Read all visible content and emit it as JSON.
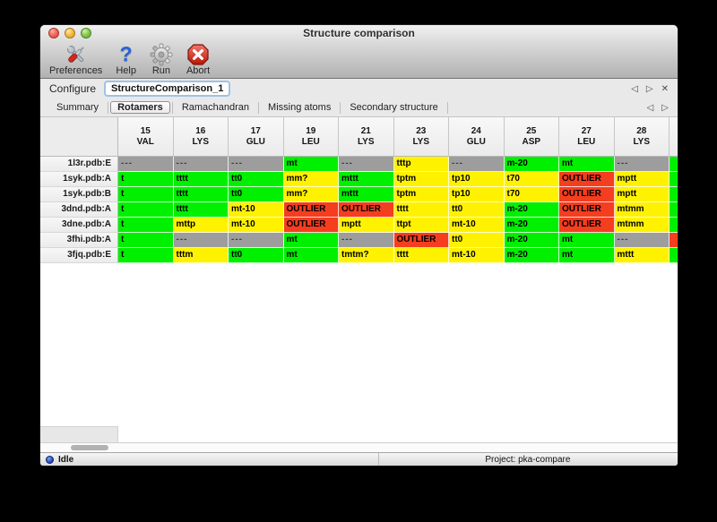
{
  "window": {
    "title": "Structure comparison"
  },
  "toolbar": {
    "buttons": [
      {
        "label": "Preferences",
        "icon": "tools-icon"
      },
      {
        "label": "Help",
        "icon": "question-mark-icon"
      },
      {
        "label": "Run",
        "icon": "gear-icon"
      },
      {
        "label": "Abort",
        "icon": "stop-x-icon"
      }
    ]
  },
  "icons": {
    "help_glyph": "?",
    "nav_prev": "◁",
    "nav_next": "▷",
    "close": "✕"
  },
  "configure": {
    "label": "Configure",
    "value": "StructureComparison_1"
  },
  "tabs": {
    "items": [
      "Summary",
      "Rotamers",
      "Ramachandran",
      "Missing atoms",
      "Secondary structure"
    ],
    "selected": "Rotamers"
  },
  "colors": {
    "ok": "#00f000",
    "warn": "#fff200",
    "outlier": "#f53d20",
    "missing": "#9d9d9d"
  },
  "table": {
    "columns": [
      {
        "num": "15",
        "res": "VAL"
      },
      {
        "num": "16",
        "res": "LYS"
      },
      {
        "num": "17",
        "res": "GLU"
      },
      {
        "num": "19",
        "res": "LEU"
      },
      {
        "num": "21",
        "res": "LYS"
      },
      {
        "num": "23",
        "res": "LYS"
      },
      {
        "num": "24",
        "res": "GLU"
      },
      {
        "num": "25",
        "res": "ASP"
      },
      {
        "num": "27",
        "res": "LEU"
      },
      {
        "num": "28",
        "res": "LYS"
      }
    ],
    "rows": [
      {
        "name": "1l3r.pdb:E",
        "cells": [
          [
            "---",
            "missing"
          ],
          [
            "---",
            "missing"
          ],
          [
            "---",
            "missing"
          ],
          [
            "mt",
            "ok"
          ],
          [
            "---",
            "missing"
          ],
          [
            "tttp",
            "warn"
          ],
          [
            "---",
            "missing"
          ],
          [
            "m-20",
            "ok"
          ],
          [
            "mt",
            "ok"
          ],
          [
            "---",
            "missing"
          ]
        ],
        "extra": "ok"
      },
      {
        "name": "1syk.pdb:A",
        "cells": [
          [
            "t",
            "ok"
          ],
          [
            "tttt",
            "ok"
          ],
          [
            "tt0",
            "ok"
          ],
          [
            "mm?",
            "warn"
          ],
          [
            "mttt",
            "ok"
          ],
          [
            "tptm",
            "warn"
          ],
          [
            "tp10",
            "warn"
          ],
          [
            "t70",
            "warn"
          ],
          [
            "OUTLIER",
            "outlier"
          ],
          [
            "mptt",
            "warn"
          ]
        ],
        "extra": "ok"
      },
      {
        "name": "1syk.pdb:B",
        "cells": [
          [
            "t",
            "ok"
          ],
          [
            "tttt",
            "ok"
          ],
          [
            "tt0",
            "ok"
          ],
          [
            "mm?",
            "warn"
          ],
          [
            "mttt",
            "ok"
          ],
          [
            "tptm",
            "warn"
          ],
          [
            "tp10",
            "warn"
          ],
          [
            "t70",
            "warn"
          ],
          [
            "OUTLIER",
            "outlier"
          ],
          [
            "mptt",
            "warn"
          ]
        ],
        "extra": "ok"
      },
      {
        "name": "3dnd.pdb:A",
        "cells": [
          [
            "t",
            "ok"
          ],
          [
            "tttt",
            "ok"
          ],
          [
            "mt-10",
            "warn"
          ],
          [
            "OUTLIER",
            "outlier"
          ],
          [
            "OUTLIER",
            "outlier"
          ],
          [
            "tttt",
            "warn"
          ],
          [
            "tt0",
            "warn"
          ],
          [
            "m-20",
            "ok"
          ],
          [
            "OUTLIER",
            "outlier"
          ],
          [
            "mtmm",
            "warn"
          ]
        ],
        "extra": "ok"
      },
      {
        "name": "3dne.pdb:A",
        "cells": [
          [
            "t",
            "ok"
          ],
          [
            "mttp",
            "warn"
          ],
          [
            "mt-10",
            "warn"
          ],
          [
            "OUTLIER",
            "outlier"
          ],
          [
            "mptt",
            "warn"
          ],
          [
            "ttpt",
            "warn"
          ],
          [
            "mt-10",
            "warn"
          ],
          [
            "m-20",
            "ok"
          ],
          [
            "OUTLIER",
            "outlier"
          ],
          [
            "mtmm",
            "warn"
          ]
        ],
        "extra": "ok"
      },
      {
        "name": "3fhi.pdb:A",
        "cells": [
          [
            "t",
            "ok"
          ],
          [
            "---",
            "missing"
          ],
          [
            "---",
            "missing"
          ],
          [
            "mt",
            "ok"
          ],
          [
            "---",
            "missing"
          ],
          [
            "OUTLIER",
            "outlier"
          ],
          [
            "tt0",
            "warn"
          ],
          [
            "m-20",
            "ok"
          ],
          [
            "mt",
            "ok"
          ],
          [
            "---",
            "missing"
          ]
        ],
        "extra": "outlier"
      },
      {
        "name": "3fjq.pdb:E",
        "cells": [
          [
            "t",
            "ok"
          ],
          [
            "tttm",
            "warn"
          ],
          [
            "tt0",
            "ok"
          ],
          [
            "mt",
            "ok"
          ],
          [
            "tmtm?",
            "warn"
          ],
          [
            "tttt",
            "warn"
          ],
          [
            "mt-10",
            "warn"
          ],
          [
            "m-20",
            "ok"
          ],
          [
            "mt",
            "ok"
          ],
          [
            "mttt",
            "warn"
          ]
        ],
        "extra": "ok"
      }
    ]
  },
  "statusbar": {
    "state": "Idle",
    "project": "Project: pka-compare"
  }
}
